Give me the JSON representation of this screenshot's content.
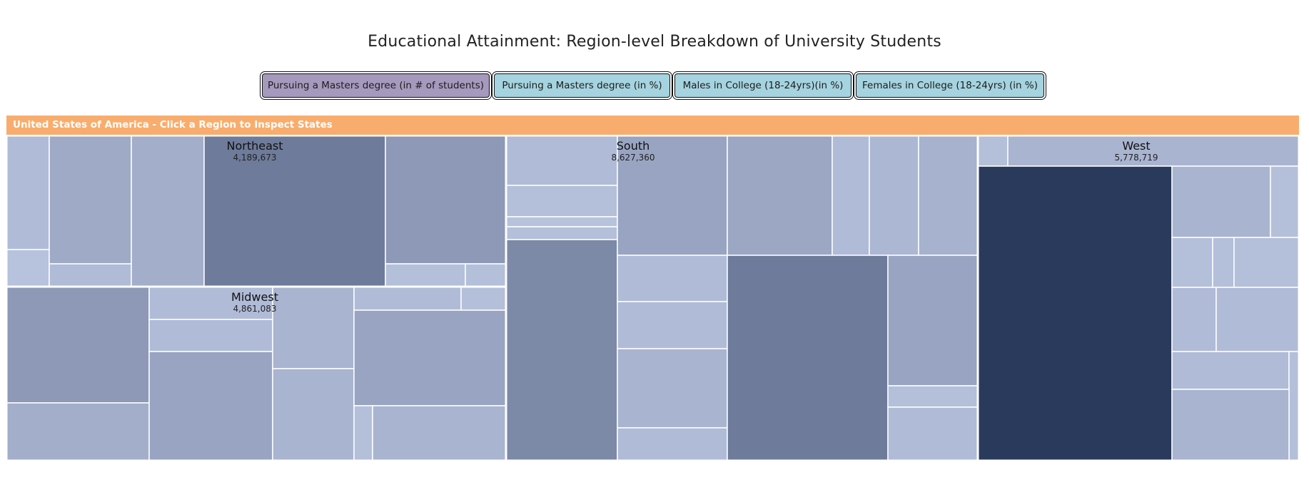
{
  "title": "Educational Attainment: Region-level Breakdown of University Students",
  "buttons": [
    {
      "label": "Pursuing a Masters degree (in # of students)",
      "active": true
    },
    {
      "label": "Pursuing a Masters degree (in %)",
      "active": false
    },
    {
      "label": "Males in College (18-24yrs)(in %)",
      "active": false
    },
    {
      "label": "Females in College (18-24yrs) (in %)",
      "active": false
    }
  ],
  "colors": {
    "button_active": "#a59abd",
    "button_inactive": "#a5d3df",
    "header": "#f8ad6e",
    "tile_min": "#b7c2dd",
    "tile_max": "#2a3a5c",
    "tile_stroke": "#ffffff"
  },
  "header": "United States of America - Click a Region to Inspect States",
  "chart_data": {
    "type": "treemap",
    "regions": [
      {
        "name": "Northeast",
        "value_label": "4,189,673",
        "value": 4189673
      },
      {
        "name": "Midwest",
        "value_label": "4,861,083",
        "value": 4861083
      },
      {
        "name": "South",
        "value_label": "8,627,360",
        "value": 8627360
      },
      {
        "name": "West",
        "value_label": "5,778,719",
        "value": 5778719
      }
    ]
  }
}
